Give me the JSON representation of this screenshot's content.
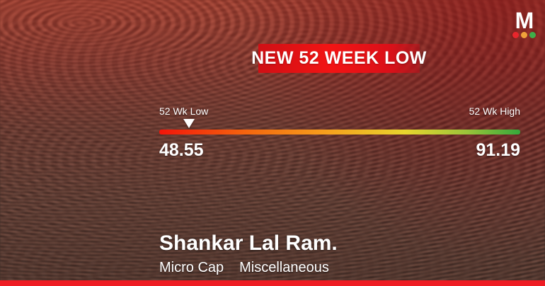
{
  "logo": {
    "letter": "M",
    "dot_colors": [
      "#e8262c",
      "#f0a13a",
      "#3fae49"
    ]
  },
  "banner": {
    "label": "NEW 52 WEEK LOW"
  },
  "gauge": {
    "low_label": "52 Wk Low",
    "high_label": "52 Wk High",
    "low_value": "48.55",
    "high_value": "91.19",
    "marker_position_pct": 8,
    "bar_gradient_colors": [
      "#f2150a",
      "#f79c1c",
      "#e8d52e",
      "#35a93b"
    ]
  },
  "company": {
    "name": "Shankar Lal Ram.",
    "cap_category": "Micro Cap",
    "sector": "Miscellaneous"
  },
  "colors": {
    "accent_red": "#ee1c23"
  },
  "chart_data": {
    "type": "bar",
    "subtype": "range-gauge",
    "title": "NEW 52 WEEK LOW",
    "categories": [
      "52 Wk Low",
      "52 Wk High"
    ],
    "values": [
      48.55,
      91.19
    ],
    "marker": {
      "label": "52 Wk Low",
      "value": 48.55,
      "position": "left-end"
    },
    "entity": "Shankar Lal Ram.",
    "tags": [
      "Micro Cap",
      "Miscellaneous"
    ],
    "axis_range": [
      48.55,
      91.19
    ],
    "legend_position": "none",
    "gradient_colors": [
      "#f2150a",
      "#f79c1c",
      "#e8d52e",
      "#35a93b"
    ]
  }
}
